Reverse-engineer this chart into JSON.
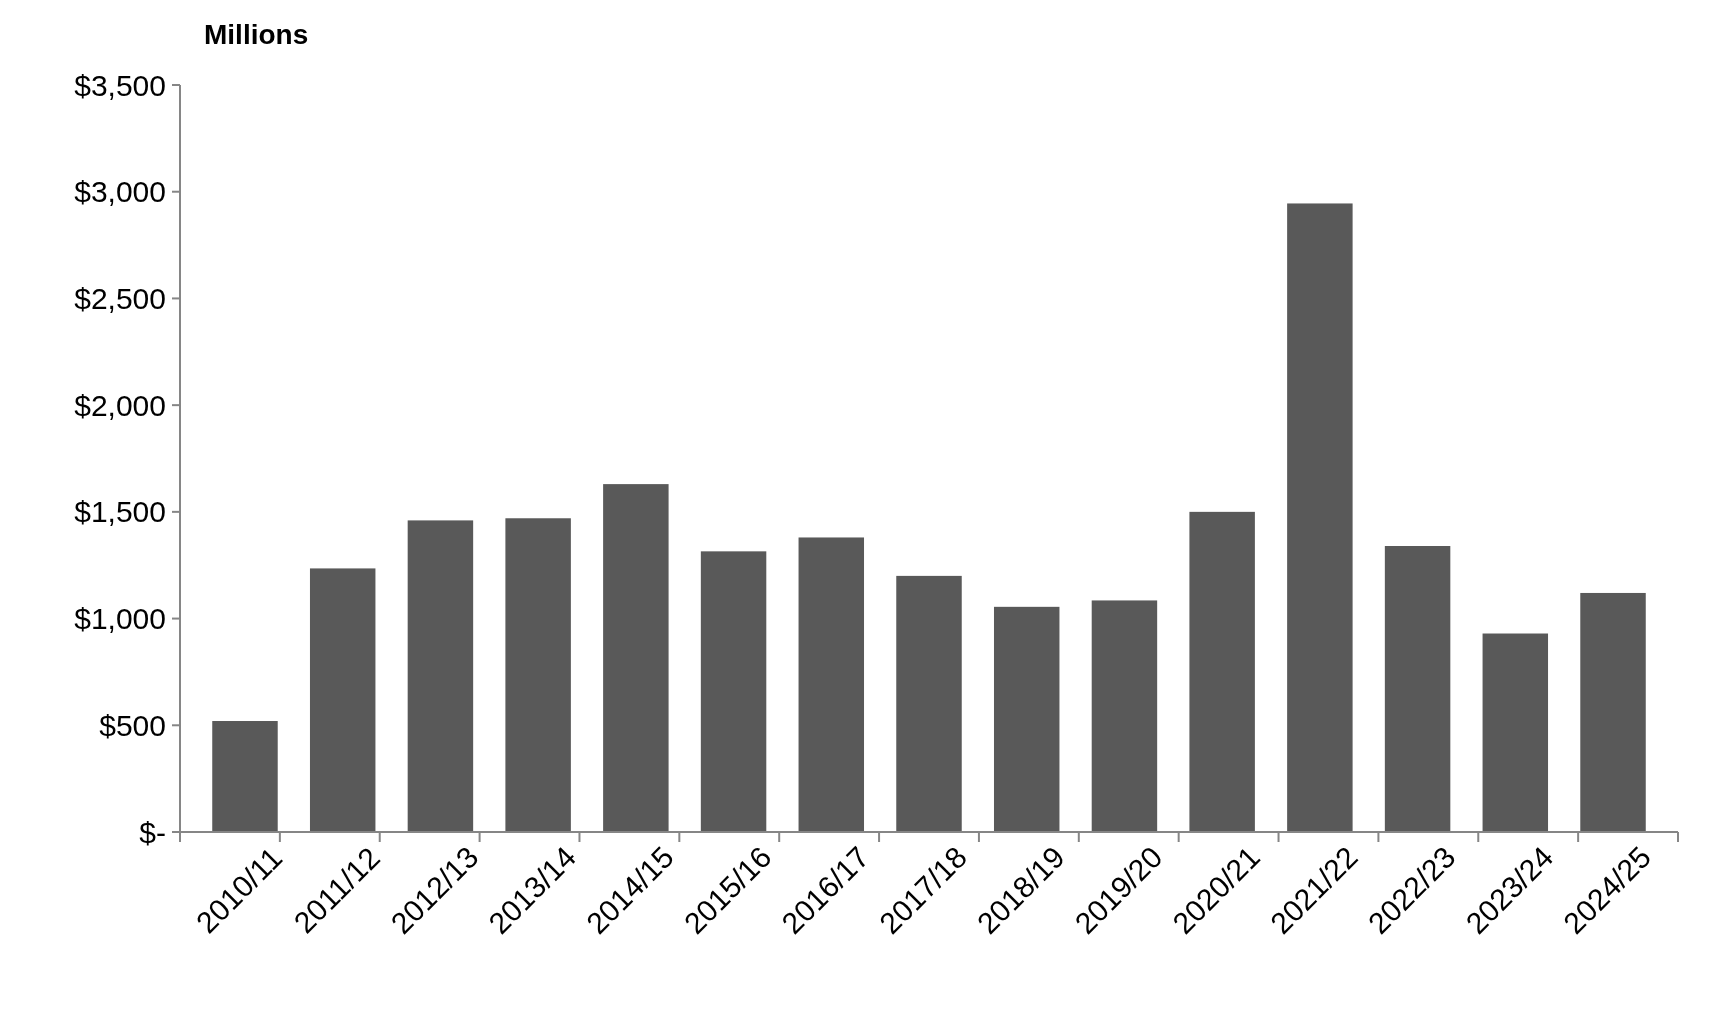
{
  "chart_data": {
    "type": "bar",
    "ylabel": "Millions",
    "categories": [
      "2010/11",
      "2011/12",
      "2012/13",
      "2013/14",
      "2014/15",
      "2015/16",
      "2016/17",
      "2017/18",
      "2018/19",
      "2019/20",
      "2020/21",
      "2021/22",
      "2022/23",
      "2023/24",
      "2024/25"
    ],
    "values": [
      520,
      1235,
      1460,
      1470,
      1630,
      1315,
      1380,
      1200,
      1055,
      1085,
      1500,
      2945,
      1340,
      930,
      1120
    ],
    "color": "#595959",
    "ylim": [
      0,
      3500
    ],
    "yticks": [
      {
        "value": 0,
        "label": "$-"
      },
      {
        "value": 500,
        "label": "$500"
      },
      {
        "value": 1000,
        "label": "$1,000"
      },
      {
        "value": 1500,
        "label": "$1,500"
      },
      {
        "value": 2000,
        "label": "$2,000"
      },
      {
        "value": 2500,
        "label": "$2,500"
      },
      {
        "value": 3000,
        "label": "$3,000"
      },
      {
        "value": 3500,
        "label": "$3,500"
      }
    ],
    "grid": false
  }
}
